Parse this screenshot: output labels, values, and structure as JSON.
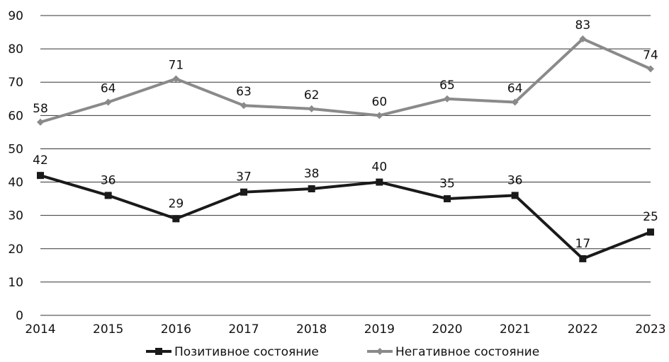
{
  "chart_data": {
    "type": "line",
    "categories": [
      "2014",
      "2015",
      "2016",
      "2017",
      "2018",
      "2019",
      "2020",
      "2021",
      "2022",
      "2023"
    ],
    "series": [
      {
        "name": "Позитивное состояние",
        "color": "#1a1a1a",
        "marker": "square",
        "values": [
          42,
          36,
          29,
          37,
          38,
          40,
          35,
          36,
          17,
          25
        ]
      },
      {
        "name": "Негативное состояние",
        "color": "#8a8a8a",
        "marker": "diamond",
        "values": [
          58,
          64,
          71,
          63,
          62,
          60,
          65,
          64,
          83,
          74
        ]
      }
    ],
    "y_ticks": [
      "0",
      "10",
      "20",
      "30",
      "40",
      "50",
      "60",
      "70",
      "80",
      "90"
    ],
    "ylim": [
      0,
      90
    ],
    "grid": "horizontal",
    "legend_position": "bottom"
  }
}
